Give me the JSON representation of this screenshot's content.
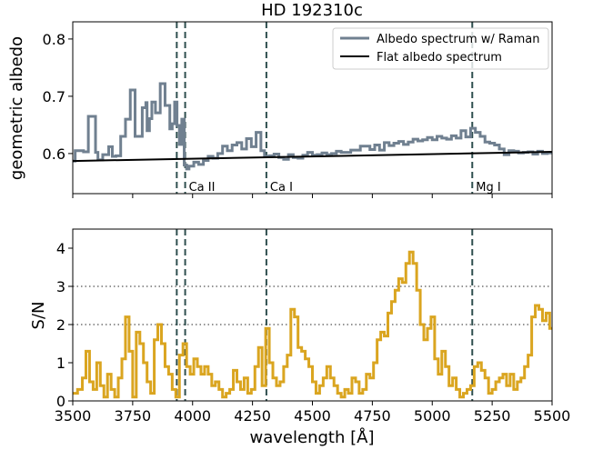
{
  "chart_data": [
    {
      "type": "line",
      "title": "HD 192310c",
      "xlabel": "",
      "ylabel": "geometric albedo",
      "xlim": [
        3500,
        5500
      ],
      "ylim": [
        0.53,
        0.83
      ],
      "yticks": [
        0.6,
        0.7,
        0.8
      ],
      "yticklabels": [
        "0.6",
        "0.7",
        "0.8"
      ],
      "grid": false,
      "legend_position": "top-right",
      "colors": {
        "raman": "#708090",
        "flat": "#000000",
        "lines": "#2f4f4f"
      },
      "series": [
        {
          "name": "Albedo spectrum w/ Raman",
          "step": true,
          "x": [
            3500,
            3510,
            3545,
            3565,
            3595,
            3605,
            3625,
            3650,
            3665,
            3680,
            3700,
            3720,
            3740,
            3760,
            3790,
            3805,
            3810,
            3820,
            3830,
            3845,
            3865,
            3885,
            3905,
            3915,
            3925,
            3935,
            3945,
            3955,
            3965,
            3975,
            3985,
            4005,
            4025,
            4045,
            4065,
            4085,
            4105,
            4125,
            4145,
            4165,
            4185,
            4205,
            4225,
            4245,
            4265,
            4285,
            4300,
            4320,
            4340,
            4360,
            4380,
            4400,
            4420,
            4440,
            4460,
            4480,
            4500,
            4520,
            4540,
            4560,
            4580,
            4600,
            4620,
            4660,
            4700,
            4740,
            4760,
            4780,
            4800,
            4820,
            4840,
            4860,
            4880,
            4900,
            4920,
            4940,
            4960,
            4980,
            5000,
            5020,
            5040,
            5060,
            5080,
            5100,
            5120,
            5140,
            5160,
            5180,
            5200,
            5220,
            5240,
            5260,
            5280,
            5300,
            5320,
            5340,
            5360,
            5380,
            5400,
            5420,
            5440,
            5460,
            5480
          ],
          "y": [
            0.587,
            0.605,
            0.603,
            0.665,
            0.602,
            0.589,
            0.598,
            0.612,
            0.595,
            0.596,
            0.63,
            0.66,
            0.711,
            0.63,
            0.68,
            0.689,
            0.64,
            0.661,
            0.69,
            0.671,
            0.722,
            0.684,
            0.643,
            0.652,
            0.69,
            0.649,
            0.616,
            0.66,
            0.58,
            0.573,
            0.578,
            0.585,
            0.581,
            0.588,
            0.595,
            0.592,
            0.6,
            0.613,
            0.605,
            0.615,
            0.619,
            0.608,
            0.626,
            0.612,
            0.637,
            0.605,
            0.595,
            0.596,
            0.599,
            0.593,
            0.59,
            0.598,
            0.593,
            0.592,
            0.597,
            0.602,
            0.597,
            0.598,
            0.601,
            0.598,
            0.6,
            0.604,
            0.602,
            0.606,
            0.613,
            0.607,
            0.615,
            0.606,
            0.619,
            0.614,
            0.618,
            0.621,
            0.616,
            0.62,
            0.625,
            0.622,
            0.624,
            0.628,
            0.624,
            0.63,
            0.627,
            0.625,
            0.631,
            0.627,
            0.64,
            0.629,
            0.644,
            0.637,
            0.63,
            0.62,
            0.618,
            0.615,
            0.608,
            0.598,
            0.605,
            0.604,
            0.601,
            0.602,
            0.603,
            0.599,
            0.604,
            0.6,
            0.601
          ]
        },
        {
          "name": "Flat albedo spectrum",
          "x": [
            3500,
            5500
          ],
          "y": [
            0.587,
            0.603
          ]
        }
      ],
      "vlines": [
        3934,
        3969,
        4308,
        5167
      ],
      "annotations": [
        {
          "text": "Ca II",
          "x": 3969
        },
        {
          "text": "Ca I",
          "x": 4308
        },
        {
          "text": "Mg I",
          "x": 5167
        }
      ]
    },
    {
      "type": "line",
      "title": "",
      "xlabel": "wavelength [Å]",
      "ylabel": "S/N",
      "xlim": [
        3500,
        5500
      ],
      "ylim": [
        0,
        4.5
      ],
      "xticks": [
        3500,
        3750,
        4000,
        4250,
        4500,
        4750,
        5000,
        5250,
        5500
      ],
      "xticklabels": [
        "3500",
        "3750",
        "4000",
        "4250",
        "4500",
        "4750",
        "5000",
        "5250",
        "5500"
      ],
      "yticks": [
        0,
        1,
        2,
        3,
        4
      ],
      "yticklabels": [
        "0",
        "1",
        "2",
        "3",
        "4"
      ],
      "hlines": [
        2,
        3
      ],
      "grid": false,
      "colors": {
        "sn": "#DAA520",
        "lines": "#2f4f4f",
        "hlines": "#555555"
      },
      "series": [
        {
          "step": true,
          "x": [
            3500,
            3520,
            3540,
            3555,
            3570,
            3585,
            3600,
            3615,
            3630,
            3645,
            3660,
            3675,
            3690,
            3705,
            3720,
            3735,
            3750,
            3765,
            3780,
            3795,
            3810,
            3825,
            3840,
            3855,
            3870,
            3885,
            3900,
            3915,
            3930,
            3945,
            3960,
            3975,
            3990,
            4005,
            4020,
            4035,
            4050,
            4065,
            4080,
            4095,
            4110,
            4125,
            4140,
            4155,
            4170,
            4185,
            4200,
            4215,
            4230,
            4245,
            4260,
            4275,
            4290,
            4305,
            4320,
            4335,
            4350,
            4365,
            4380,
            4395,
            4410,
            4425,
            4440,
            4455,
            4470,
            4485,
            4500,
            4515,
            4530,
            4545,
            4560,
            4575,
            4590,
            4605,
            4620,
            4635,
            4650,
            4665,
            4680,
            4695,
            4710,
            4725,
            4740,
            4755,
            4770,
            4785,
            4800,
            4815,
            4830,
            4845,
            4860,
            4875,
            4890,
            4905,
            4920,
            4935,
            4950,
            4965,
            4980,
            4995,
            5010,
            5025,
            5040,
            5055,
            5070,
            5085,
            5100,
            5115,
            5130,
            5145,
            5160,
            5175,
            5190,
            5205,
            5220,
            5235,
            5250,
            5265,
            5280,
            5295,
            5310,
            5325,
            5340,
            5355,
            5370,
            5385,
            5400,
            5415,
            5430,
            5445,
            5460,
            5475,
            5490
          ],
          "y": [
            0.2,
            0.3,
            0.6,
            1.3,
            0.5,
            0.3,
            1.0,
            0.4,
            0.1,
            0.7,
            0.3,
            0.1,
            0.6,
            1.1,
            2.2,
            1.3,
            0.1,
            1.8,
            1.5,
            1.0,
            0.5,
            0.2,
            1.6,
            2.0,
            1.5,
            0.9,
            0.7,
            0.3,
            0.1,
            1.2,
            1.5,
            0.9,
            0.7,
            1.1,
            0.9,
            0.7,
            0.9,
            0.7,
            0.4,
            0.5,
            0.3,
            0.1,
            0.2,
            0.3,
            0.8,
            0.5,
            0.3,
            0.6,
            0.2,
            0.3,
            0.9,
            1.4,
            0.4,
            1.9,
            1.0,
            0.6,
            0.4,
            0.5,
            0.9,
            1.2,
            2.4,
            2.2,
            1.4,
            1.3,
            1.1,
            0.9,
            0.5,
            0.2,
            0.4,
            0.6,
            0.9,
            0.6,
            0.4,
            0.2,
            0.1,
            0.3,
            0.2,
            0.6,
            0.5,
            0.2,
            0.3,
            0.7,
            0.6,
            1.0,
            1.6,
            1.8,
            1.7,
            2.3,
            2.6,
            2.9,
            3.2,
            3.1,
            3.6,
            3.9,
            3.6,
            2.9,
            2.0,
            1.6,
            1.9,
            2.2,
            1.1,
            0.7,
            1.3,
            0.9,
            0.4,
            0.6,
            0.3,
            0.1,
            0.2,
            0.3,
            0.4,
            0.9,
            1.0,
            0.8,
            0.6,
            0.2,
            0.3,
            0.5,
            0.6,
            0.7,
            0.4,
            0.7,
            0.3,
            0.5,
            0.6,
            0.9,
            1.2,
            2.2,
            2.5,
            2.4,
            2.1,
            2.3,
            1.9
          ]
        }
      ],
      "vlines": [
        3934,
        3969,
        4308,
        5167
      ]
    }
  ]
}
